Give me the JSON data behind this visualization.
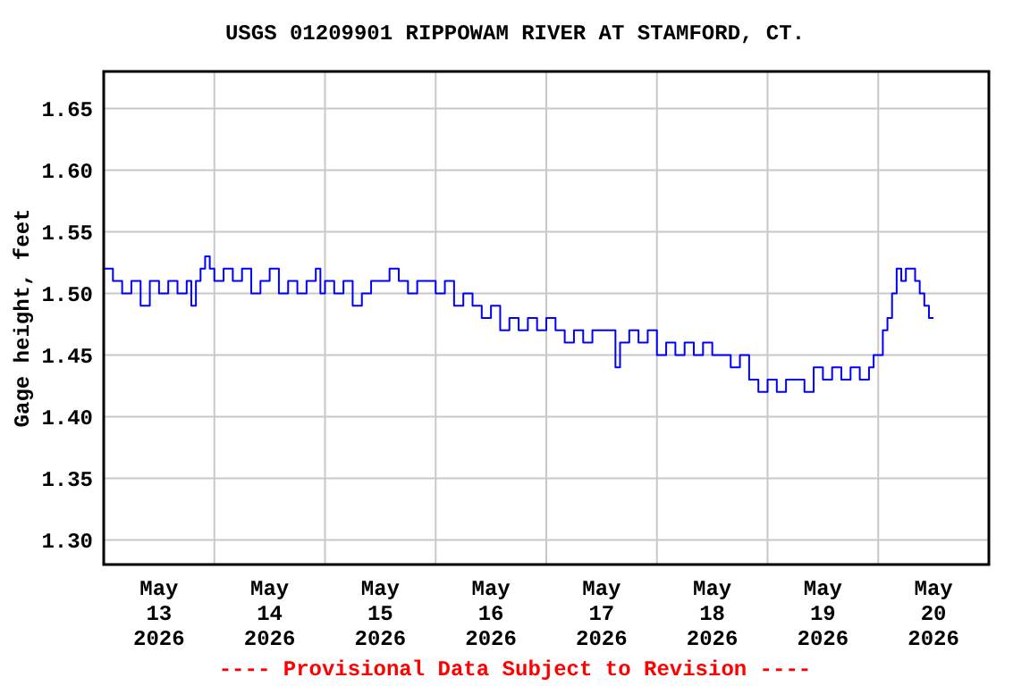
{
  "chart_data": {
    "type": "step",
    "title": "USGS 01209901 RIPPOWAM RIVER AT STAMFORD, CT.",
    "ylabel": "Gage height, feet",
    "annotations": [
      "---- Provisional Data Subject to Revision ----"
    ],
    "xlim": [
      "2026-05-13T00:00",
      "2026-05-21T00:00"
    ],
    "xticks": [
      {
        "value": "2026-05-13T12:00",
        "label": "May\n13\n2026"
      },
      {
        "value": "2026-05-14T00:00",
        "label": null
      },
      {
        "value": "2026-05-14T12:00",
        "label": "May\n14\n2026"
      },
      {
        "value": "2026-05-15T00:00",
        "label": null
      },
      {
        "value": "2026-05-15T12:00",
        "label": "May\n15\n2026"
      },
      {
        "value": "2026-05-16T00:00",
        "label": null
      },
      {
        "value": "2026-05-16T12:00",
        "label": "May\n16\n2026"
      },
      {
        "value": "2026-05-17T00:00",
        "label": null
      },
      {
        "value": "2026-05-17T12:00",
        "label": "May\n17\n2026"
      },
      {
        "value": "2026-05-18T00:00",
        "label": null
      },
      {
        "value": "2026-05-18T12:00",
        "label": "May\n18\n2026"
      },
      {
        "value": "2026-05-19T00:00",
        "label": null
      },
      {
        "value": "2026-05-19T12:00",
        "label": "May\n19\n2026"
      },
      {
        "value": "2026-05-20T00:00",
        "label": null
      },
      {
        "value": "2026-05-20T12:00",
        "label": "May\n20\n2026"
      }
    ],
    "ylim": [
      1.28,
      1.68
    ],
    "yticks": [
      {
        "value": 1.3,
        "label": "1.30"
      },
      1.35,
      {
        "value": 1.4,
        "label": "1.40"
      },
      1.45,
      {
        "value": 1.5,
        "label": "1.50"
      },
      1.55,
      {
        "value": 1.6,
        "label": "1.60"
      },
      1.65
    ],
    "grid": true,
    "series": [
      {
        "color": "#0000ff",
        "x": [
          "2026-05-13T00:00",
          "2026-05-13T02:00",
          "2026-05-13T04:00",
          "2026-05-13T06:00",
          "2026-05-13T08:00",
          "2026-05-13T10:00",
          "2026-05-13T12:00",
          "2026-05-13T14:00",
          "2026-05-13T16:00",
          "2026-05-13T18:00",
          "2026-05-13T19:00",
          "2026-05-13T20:00",
          "2026-05-13T21:00",
          "2026-05-13T22:00",
          "2026-05-13T23:00",
          "2026-05-14T00:00",
          "2026-05-14T02:00",
          "2026-05-14T04:00",
          "2026-05-14T06:00",
          "2026-05-14T08:00",
          "2026-05-14T10:00",
          "2026-05-14T12:00",
          "2026-05-14T14:00",
          "2026-05-14T16:00",
          "2026-05-14T18:00",
          "2026-05-14T20:00",
          "2026-05-14T22:00",
          "2026-05-14T23:00",
          "2026-05-15T00:00",
          "2026-05-15T02:00",
          "2026-05-15T04:00",
          "2026-05-15T06:00",
          "2026-05-15T08:00",
          "2026-05-15T10:00",
          "2026-05-15T14:00",
          "2026-05-15T16:00",
          "2026-05-15T18:00",
          "2026-05-15T20:00",
          "2026-05-15T22:00",
          "2026-05-16T00:00",
          "2026-05-16T02:00",
          "2026-05-16T04:00",
          "2026-05-16T06:00",
          "2026-05-16T08:00",
          "2026-05-16T10:00",
          "2026-05-16T12:00",
          "2026-05-16T14:00",
          "2026-05-16T16:00",
          "2026-05-16T18:00",
          "2026-05-16T20:00",
          "2026-05-16T22:00",
          "2026-05-17T00:00",
          "2026-05-17T02:00",
          "2026-05-17T04:00",
          "2026-05-17T06:00",
          "2026-05-17T08:00",
          "2026-05-17T10:00",
          "2026-05-17T12:00",
          "2026-05-17T14:00",
          "2026-05-17T15:00",
          "2026-05-17T16:00",
          "2026-05-17T18:00",
          "2026-05-17T20:00",
          "2026-05-17T22:00",
          "2026-05-18T00:00",
          "2026-05-18T02:00",
          "2026-05-18T04:00",
          "2026-05-18T06:00",
          "2026-05-18T08:00",
          "2026-05-18T10:00",
          "2026-05-18T12:00",
          "2026-05-18T14:00",
          "2026-05-18T16:00",
          "2026-05-18T18:00",
          "2026-05-18T20:00",
          "2026-05-18T22:00",
          "2026-05-19T00:00",
          "2026-05-19T02:00",
          "2026-05-19T04:00",
          "2026-05-19T06:00",
          "2026-05-19T08:00",
          "2026-05-19T10:00",
          "2026-05-19T12:00",
          "2026-05-19T14:00",
          "2026-05-19T16:00",
          "2026-05-19T18:00",
          "2026-05-19T20:00",
          "2026-05-19T22:00",
          "2026-05-19T23:00",
          "2026-05-20T01:00",
          "2026-05-20T02:00",
          "2026-05-20T03:00",
          "2026-05-20T04:00",
          "2026-05-20T05:00",
          "2026-05-20T06:00",
          "2026-05-20T08:00",
          "2026-05-20T09:00",
          "2026-05-20T10:00",
          "2026-05-20T11:00",
          "2026-05-20T12:00"
        ],
        "values": [
          1.52,
          1.51,
          1.5,
          1.51,
          1.49,
          1.51,
          1.5,
          1.51,
          1.5,
          1.51,
          1.49,
          1.51,
          1.52,
          1.53,
          1.52,
          1.51,
          1.52,
          1.51,
          1.52,
          1.5,
          1.51,
          1.52,
          1.5,
          1.51,
          1.5,
          1.51,
          1.52,
          1.5,
          1.51,
          1.5,
          1.51,
          1.49,
          1.5,
          1.51,
          1.52,
          1.51,
          1.5,
          1.51,
          1.51,
          1.5,
          1.51,
          1.49,
          1.5,
          1.49,
          1.48,
          1.49,
          1.47,
          1.48,
          1.47,
          1.48,
          1.47,
          1.48,
          1.47,
          1.46,
          1.47,
          1.46,
          1.47,
          1.47,
          1.47,
          1.44,
          1.46,
          1.47,
          1.46,
          1.47,
          1.45,
          1.46,
          1.45,
          1.46,
          1.45,
          1.46,
          1.45,
          1.45,
          1.44,
          1.45,
          1.43,
          1.42,
          1.43,
          1.42,
          1.43,
          1.43,
          1.42,
          1.44,
          1.43,
          1.44,
          1.43,
          1.44,
          1.43,
          1.44,
          1.45,
          1.47,
          1.48,
          1.5,
          1.52,
          1.51,
          1.52,
          1.51,
          1.5,
          1.49,
          1.48,
          1.48
        ]
      }
    ]
  }
}
